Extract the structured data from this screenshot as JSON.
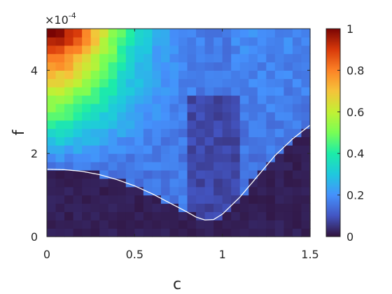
{
  "chart_data": {
    "type": "heatmap",
    "xlabel": "c",
    "ylabel": "f",
    "xlim": [
      0,
      1.5
    ],
    "ylim": [
      0,
      0.0005
    ],
    "x_ticks": [
      "0",
      "0.5",
      "1",
      "1.5"
    ],
    "x_tick_values": [
      0,
      0.5,
      1,
      1.5
    ],
    "y_ticks": [
      "0",
      "2",
      "4"
    ],
    "y_tick_values": [
      0,
      0.0002,
      0.0004
    ],
    "y_exponent": {
      "base": "×10",
      "power": "-4"
    },
    "colorbar": {
      "range": [
        0,
        1
      ],
      "ticks": [
        "0",
        "0.2",
        "0.4",
        "0.6",
        "0.8",
        "1"
      ],
      "tick_values": [
        0,
        0.2,
        0.4,
        0.6,
        0.8,
        1
      ],
      "colormap": "turbo"
    },
    "grid": false,
    "n_cols": 30,
    "n_rows": 25,
    "curve": {
      "color": "#ffffff",
      "x": [
        0,
        0.1,
        0.2,
        0.3,
        0.4,
        0.5,
        0.6,
        0.7,
        0.8,
        0.85,
        0.9,
        0.95,
        1.0,
        1.1,
        1.2,
        1.3,
        1.4,
        1.5
      ],
      "y": [
        0.000162,
        0.000161,
        0.000157,
        0.000149,
        0.000137,
        0.000122,
        0.000103,
        8.1e-05,
        5.9e-05,
        4.7e-05,
        4e-05,
        4.1e-05,
        5.4e-05,
        9.5e-05,
        0.000145,
        0.000195,
        0.000235,
        0.000268
      ]
    }
  }
}
